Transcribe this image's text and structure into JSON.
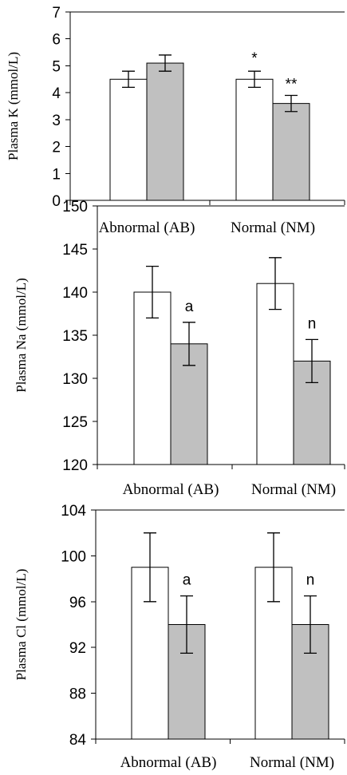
{
  "chart_data": [
    {
      "type": "bar",
      "ylabel": "Plasma K (mmol/L)",
      "ylim": [
        0,
        7
      ],
      "yticks": [
        0,
        1,
        2,
        3,
        4,
        5,
        6,
        7
      ],
      "categories": [
        "Abnormal (AB)",
        "Normal (NM)"
      ],
      "series": [
        {
          "fill": "#ffffff",
          "values": [
            4.5,
            4.5
          ],
          "errors": [
            0.3,
            0.3
          ]
        },
        {
          "fill": "#c0c0c0",
          "values": [
            5.1,
            3.6
          ],
          "errors": [
            0.3,
            0.3
          ]
        }
      ],
      "annotations": [
        {
          "text": "*",
          "category": 1,
          "series": 0
        },
        {
          "text": "**",
          "category": 1,
          "series": 1
        }
      ]
    },
    {
      "type": "bar",
      "ylabel": "Plasma Na (mmol/L)",
      "ylim": [
        120,
        150
      ],
      "yticks": [
        120,
        125,
        130,
        135,
        140,
        145,
        150
      ],
      "categories": [
        "Abnormal (AB)",
        "Normal (NM)"
      ],
      "series": [
        {
          "fill": "#ffffff",
          "values": [
            140,
            141
          ],
          "errors": [
            3,
            3
          ]
        },
        {
          "fill": "#c0c0c0",
          "values": [
            134,
            132
          ],
          "errors": [
            2.5,
            2.5
          ]
        }
      ],
      "annotations": [
        {
          "text": "a",
          "category": 0,
          "series": 1
        },
        {
          "text": "n",
          "category": 1,
          "series": 1
        }
      ]
    },
    {
      "type": "bar",
      "ylabel": "Plasma Cl (mmol/L)",
      "ylim": [
        84,
        104
      ],
      "yticks": [
        84,
        88,
        92,
        96,
        100,
        104
      ],
      "categories": [
        "Abnormal (AB)",
        "Normal (NM)"
      ],
      "series": [
        {
          "fill": "#ffffff",
          "values": [
            99,
            99
          ],
          "errors": [
            3,
            3
          ]
        },
        {
          "fill": "#c0c0c0",
          "values": [
            94,
            94
          ],
          "errors": [
            2.5,
            2.5
          ]
        }
      ],
      "annotations": [
        {
          "text": "a",
          "category": 0,
          "series": 1
        },
        {
          "text": "n",
          "category": 1,
          "series": 1
        }
      ]
    }
  ]
}
